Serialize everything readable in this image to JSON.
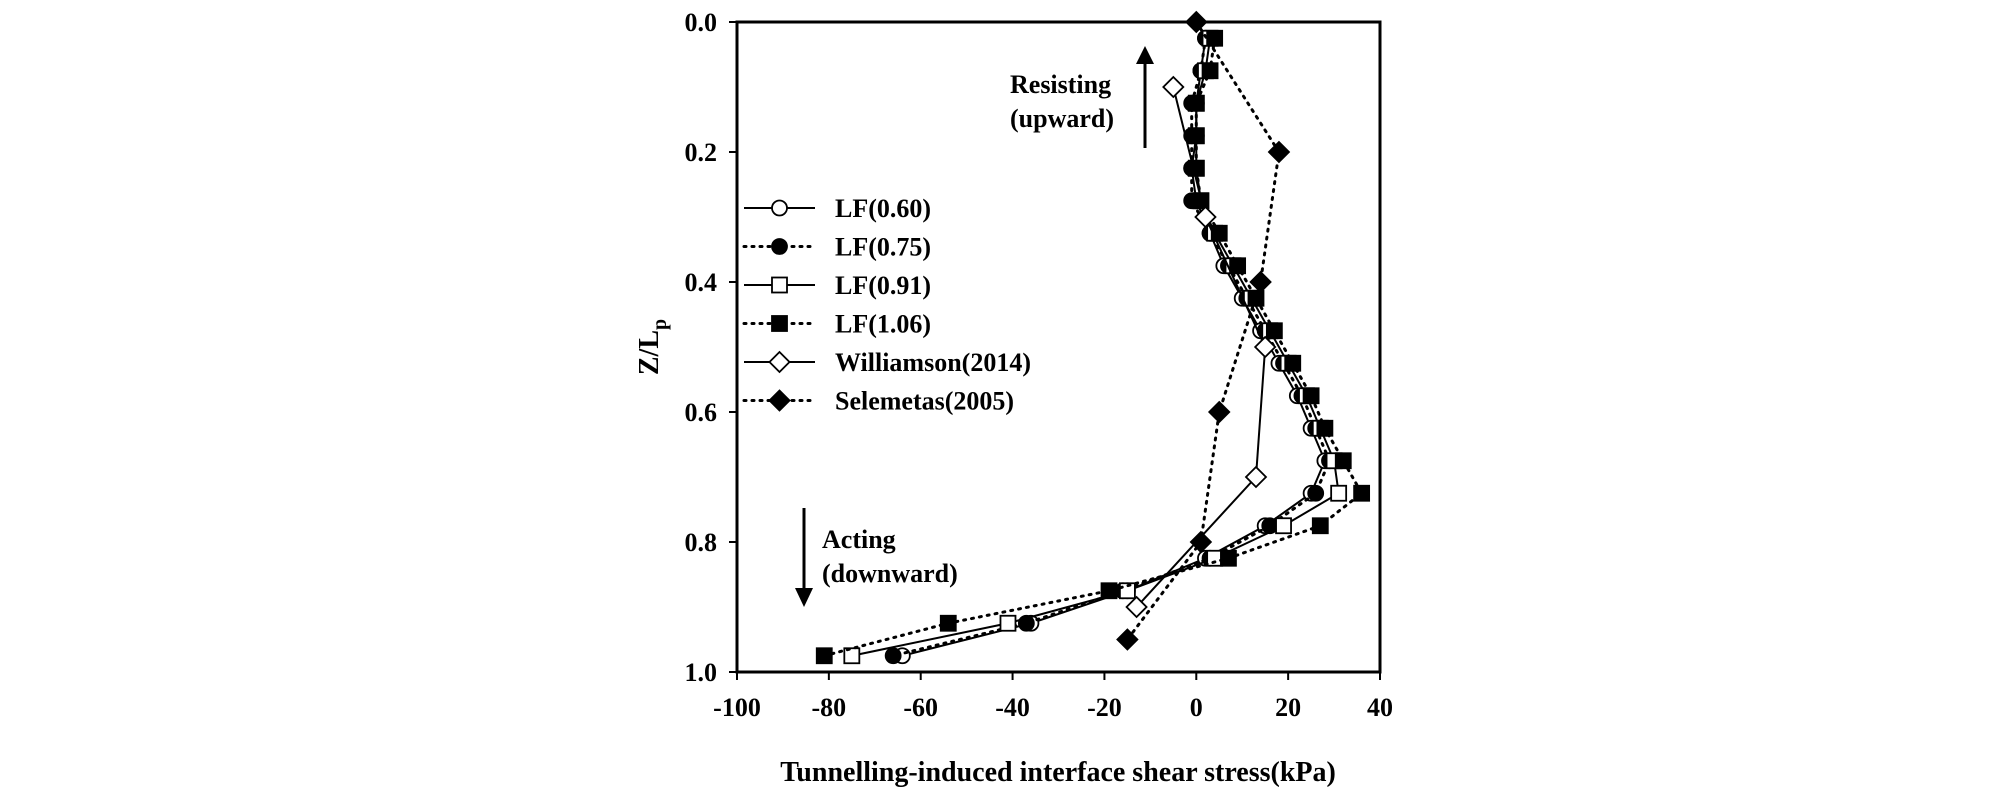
{
  "chart_data": {
    "type": "line",
    "xlabel": "Tunnelling-induced interface shear stress(kPa)",
    "ylabel": "Z/L",
    "ylabel_subscript": "p",
    "xlim": [
      -100,
      40
    ],
    "ylim": [
      0,
      1.0
    ],
    "y_inverted": true,
    "xticks": [
      -100,
      -80,
      -60,
      -40,
      -20,
      0,
      20,
      40
    ],
    "yticks": [
      0.0,
      0.2,
      0.4,
      0.6,
      0.8,
      1.0
    ],
    "xtick_labels": [
      "-100",
      "-80",
      "-60",
      "-40",
      "-20",
      "0",
      "20",
      "40"
    ],
    "ytick_labels": [
      "0.0",
      "0.2",
      "0.4",
      "0.6",
      "0.8",
      "1.0"
    ],
    "legend_position": "middle-left",
    "annotations": [
      {
        "lines": [
          "Resisting",
          "(upward)"
        ],
        "arrow": "up"
      },
      {
        "lines": [
          "Acting",
          "(downward)"
        ],
        "arrow": "down"
      }
    ],
    "series": [
      {
        "name": "LF(0.60)",
        "marker": "circle",
        "fill": "open",
        "line": "solid",
        "points": [
          [
            2,
            0.025
          ],
          [
            1,
            0.075
          ],
          [
            0,
            0.125
          ],
          [
            0,
            0.175
          ],
          [
            -1,
            0.225
          ],
          [
            0,
            0.275
          ],
          [
            3,
            0.325
          ],
          [
            6,
            0.375
          ],
          [
            10,
            0.425
          ],
          [
            14,
            0.475
          ],
          [
            18,
            0.525
          ],
          [
            22,
            0.575
          ],
          [
            25,
            0.625
          ],
          [
            28,
            0.675
          ],
          [
            25,
            0.725
          ],
          [
            15,
            0.775
          ],
          [
            2,
            0.825
          ],
          [
            -15,
            0.875
          ],
          [
            -36,
            0.925
          ],
          [
            -64,
            0.975
          ]
        ]
      },
      {
        "name": "LF(0.75)",
        "marker": "circle",
        "fill": "filled",
        "line": "dotted",
        "points": [
          [
            2,
            0.025
          ],
          [
            1,
            0.075
          ],
          [
            -1,
            0.125
          ],
          [
            -1,
            0.175
          ],
          [
            -1,
            0.225
          ],
          [
            -1,
            0.275
          ],
          [
            3,
            0.325
          ],
          [
            7,
            0.375
          ],
          [
            11,
            0.425
          ],
          [
            15,
            0.475
          ],
          [
            19,
            0.525
          ],
          [
            23,
            0.575
          ],
          [
            26,
            0.625
          ],
          [
            29,
            0.675
          ],
          [
            26,
            0.725
          ],
          [
            16,
            0.775
          ],
          [
            3,
            0.825
          ],
          [
            -16,
            0.875
          ],
          [
            -37,
            0.925
          ],
          [
            -66,
            0.975
          ]
        ]
      },
      {
        "name": "LF(0.91)",
        "marker": "square",
        "fill": "open",
        "line": "solid",
        "points": [
          [
            3,
            0.025
          ],
          [
            2,
            0.075
          ],
          [
            0,
            0.125
          ],
          [
            0,
            0.175
          ],
          [
            0,
            0.225
          ],
          [
            1,
            0.275
          ],
          [
            4,
            0.325
          ],
          [
            8,
            0.375
          ],
          [
            12,
            0.425
          ],
          [
            16,
            0.475
          ],
          [
            20,
            0.525
          ],
          [
            24,
            0.575
          ],
          [
            27,
            0.625
          ],
          [
            30,
            0.675
          ],
          [
            31,
            0.725
          ],
          [
            19,
            0.775
          ],
          [
            4,
            0.825
          ],
          [
            -15,
            0.875
          ],
          [
            -41,
            0.925
          ],
          [
            -75,
            0.975
          ]
        ]
      },
      {
        "name": "LF(1.06)",
        "marker": "square",
        "fill": "filled",
        "line": "dotted",
        "points": [
          [
            4,
            0.025
          ],
          [
            3,
            0.075
          ],
          [
            0,
            0.125
          ],
          [
            0,
            0.175
          ],
          [
            0,
            0.225
          ],
          [
            1,
            0.275
          ],
          [
            5,
            0.325
          ],
          [
            9,
            0.375
          ],
          [
            13,
            0.425
          ],
          [
            17,
            0.475
          ],
          [
            21,
            0.525
          ],
          [
            25,
            0.575
          ],
          [
            28,
            0.625
          ],
          [
            32,
            0.675
          ],
          [
            36,
            0.725
          ],
          [
            27,
            0.775
          ],
          [
            7,
            0.825
          ],
          [
            -19,
            0.875
          ],
          [
            -54,
            0.925
          ],
          [
            -81,
            0.975
          ]
        ]
      },
      {
        "name": "Williamson(2014)",
        "marker": "diamond",
        "fill": "open",
        "line": "solid",
        "points": [
          [
            -5,
            0.1
          ],
          [
            2,
            0.3
          ],
          [
            15,
            0.5
          ],
          [
            13,
            0.7
          ],
          [
            -13,
            0.9
          ]
        ]
      },
      {
        "name": "Selemetas(2005)",
        "marker": "diamond",
        "fill": "filled",
        "line": "dotted",
        "points": [
          [
            0,
            0
          ],
          [
            18,
            0.2
          ],
          [
            14,
            0.4
          ],
          [
            5,
            0.6
          ],
          [
            1,
            0.8
          ],
          [
            -15,
            0.95
          ]
        ]
      }
    ]
  }
}
